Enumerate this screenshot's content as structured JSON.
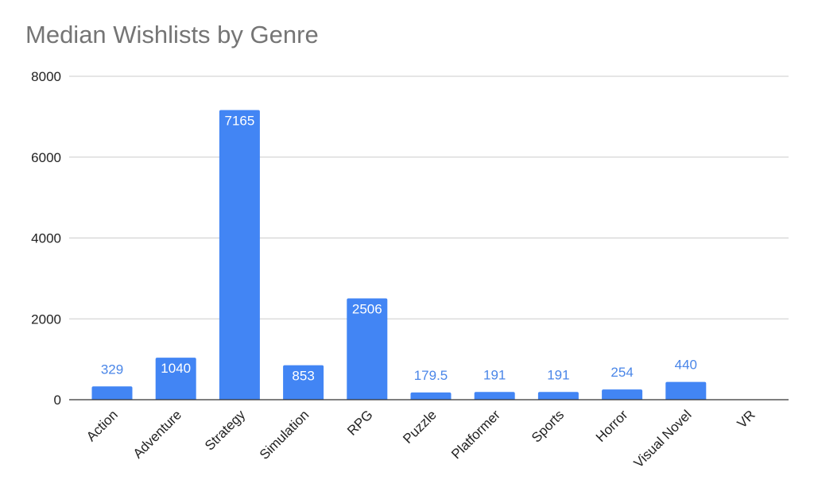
{
  "chart_data": {
    "type": "bar",
    "title": "Median Wishlists by Genre",
    "xlabel": "",
    "ylabel": "",
    "categories": [
      "Action",
      "Adventure",
      "Strategy",
      "Simulation",
      "RPG",
      "Puzzle",
      "Platformer",
      "Sports",
      "Horror",
      "Visual Novel",
      "VR"
    ],
    "values": [
      329,
      1040,
      7165,
      853,
      2506,
      179.5,
      191,
      191,
      254,
      440,
      null
    ],
    "data_labels": [
      "329",
      "1040",
      "7165",
      "853",
      "2506",
      "179.5",
      "191",
      "191",
      "254",
      "440",
      ""
    ],
    "ylim": [
      0,
      8000
    ],
    "yticks": [
      0,
      2000,
      4000,
      6000,
      8000
    ],
    "ytick_labels": [
      "0",
      "2000",
      "4000",
      "6000",
      "8000"
    ],
    "grid": true,
    "legend": "none",
    "colors": {
      "bar": "#4285f4",
      "grid": "#cccccc",
      "axis": "#333333",
      "label_inside": "#ffffff",
      "label_outside": "#4a86e8",
      "title": "#757575"
    }
  }
}
